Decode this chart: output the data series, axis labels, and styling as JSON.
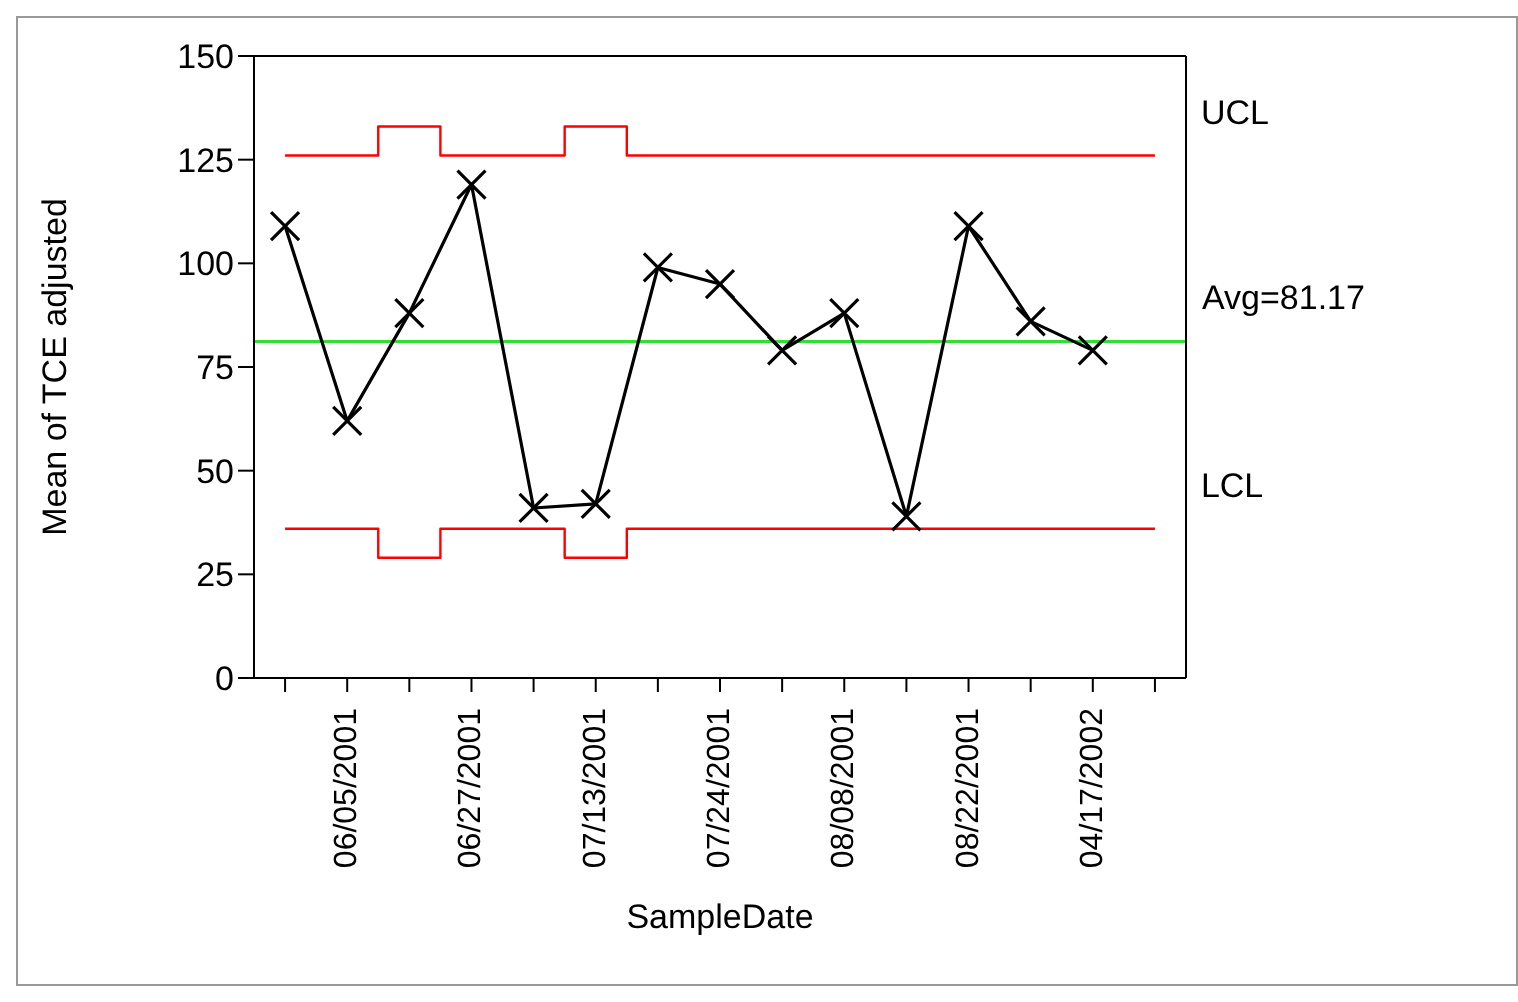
{
  "chart_data": {
    "type": "line",
    "xlabel": "SampleDate",
    "ylabel": "Mean of TCE adjusted",
    "categories": [
      null,
      "06/05/2001",
      null,
      "06/27/2001",
      null,
      "07/13/2001",
      null,
      "07/24/2001",
      null,
      "08/08/2001",
      null,
      "08/22/2001",
      null,
      "04/17/2002",
      null
    ],
    "series": [
      {
        "color": "#000000",
        "marker": "cross",
        "values": [
          109,
          62,
          88,
          119,
          41,
          42,
          99,
          95,
          79,
          88,
          39,
          109,
          86,
          79,
          null
        ]
      },
      {
        "name": "UCL",
        "type": "step",
        "color": "#ff0000",
        "marker": "none",
        "values": [
          126,
          126,
          133,
          126,
          126,
          133,
          126,
          126,
          126,
          126,
          126,
          126,
          126,
          126,
          126
        ]
      },
      {
        "name": "LCL",
        "type": "step",
        "color": "#ff0000",
        "marker": "none",
        "values": [
          36,
          36,
          29,
          36,
          36,
          29,
          36,
          36,
          36,
          36,
          36,
          36,
          36,
          36,
          36
        ]
      }
    ],
    "ref_lines": [
      {
        "axis": "y",
        "value": 81.17,
        "label": "Avg=81.17",
        "color": "#33dd33"
      }
    ],
    "ylim": [
      0,
      150
    ],
    "yticks": [
      0,
      25,
      50,
      75,
      100,
      125,
      150
    ]
  }
}
